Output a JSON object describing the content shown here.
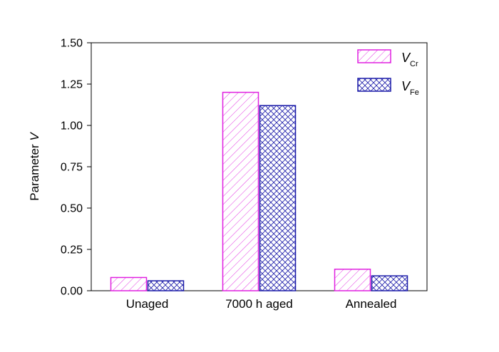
{
  "chart_data": {
    "type": "bar",
    "categories": [
      "Unaged",
      "7000 h aged",
      "Annealed"
    ],
    "series": [
      {
        "name": "V",
        "subscript": "Cr",
        "values": [
          0.08,
          1.2,
          0.13
        ],
        "color": "#e020e0",
        "pattern": "diagonal-hatch"
      },
      {
        "name": "V",
        "subscript": "Fe",
        "values": [
          0.06,
          1.12,
          0.09
        ],
        "color": "#1a1aa8",
        "pattern": "cross-hatch"
      }
    ],
    "ylabel": {
      "text": "Parameter ",
      "italic": "V"
    },
    "ylim": [
      0,
      1.5
    ],
    "yticks": [
      "0.00",
      "0.25",
      "0.50",
      "0.75",
      "1.00",
      "1.25",
      "1.50"
    ],
    "xlabel": "",
    "title": "",
    "legend_position": "top-right",
    "grid": false
  }
}
